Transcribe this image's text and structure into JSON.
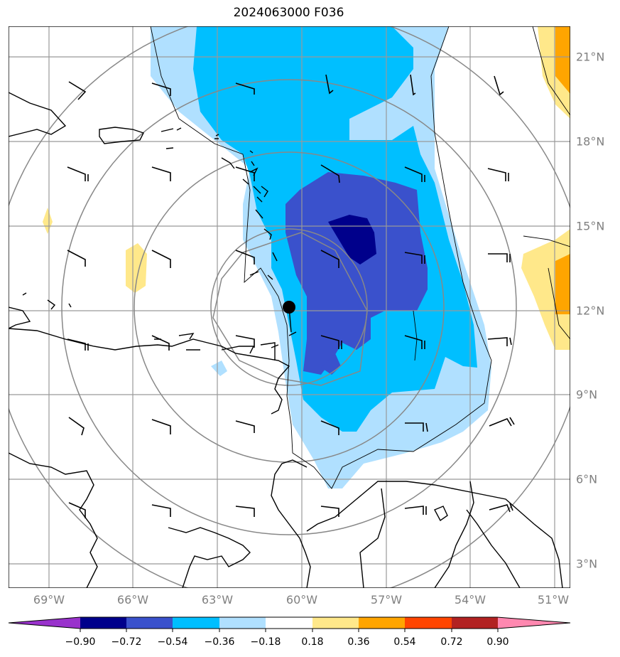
{
  "title": "2024063000 F036",
  "lon_labels": [
    "69°W",
    "66°W",
    "63°W",
    "60°W",
    "57°W",
    "54°W",
    "51°W"
  ],
  "lat_labels": [
    "21°N",
    "18°N",
    "15°N",
    "12°N",
    "9°N",
    "6°N",
    "3°N"
  ],
  "colorbar": {
    "ticks": [
      "−0.90",
      "−0.72",
      "−0.54",
      "−0.36",
      "−0.18",
      "0.18",
      "0.36",
      "0.54",
      "0.72",
      "0.90"
    ],
    "colors": [
      "#9932cc",
      "#00008b",
      "#3a51cc",
      "#00bfff",
      "#b0e0ff",
      "#ffffff",
      "#ffe88a",
      "#ffa500",
      "#ff4500",
      "#b22222",
      "#ff88b0"
    ]
  },
  "marker": {
    "lat": 12.1,
    "lon": -60.7
  },
  "fill_colors": {
    "dark": "#00008b",
    "mid": "#3a51cc",
    "blue": "#00bfff",
    "light": "#b0e0ff",
    "yellow": "#ffe88a",
    "orange": "#ffa500"
  }
}
